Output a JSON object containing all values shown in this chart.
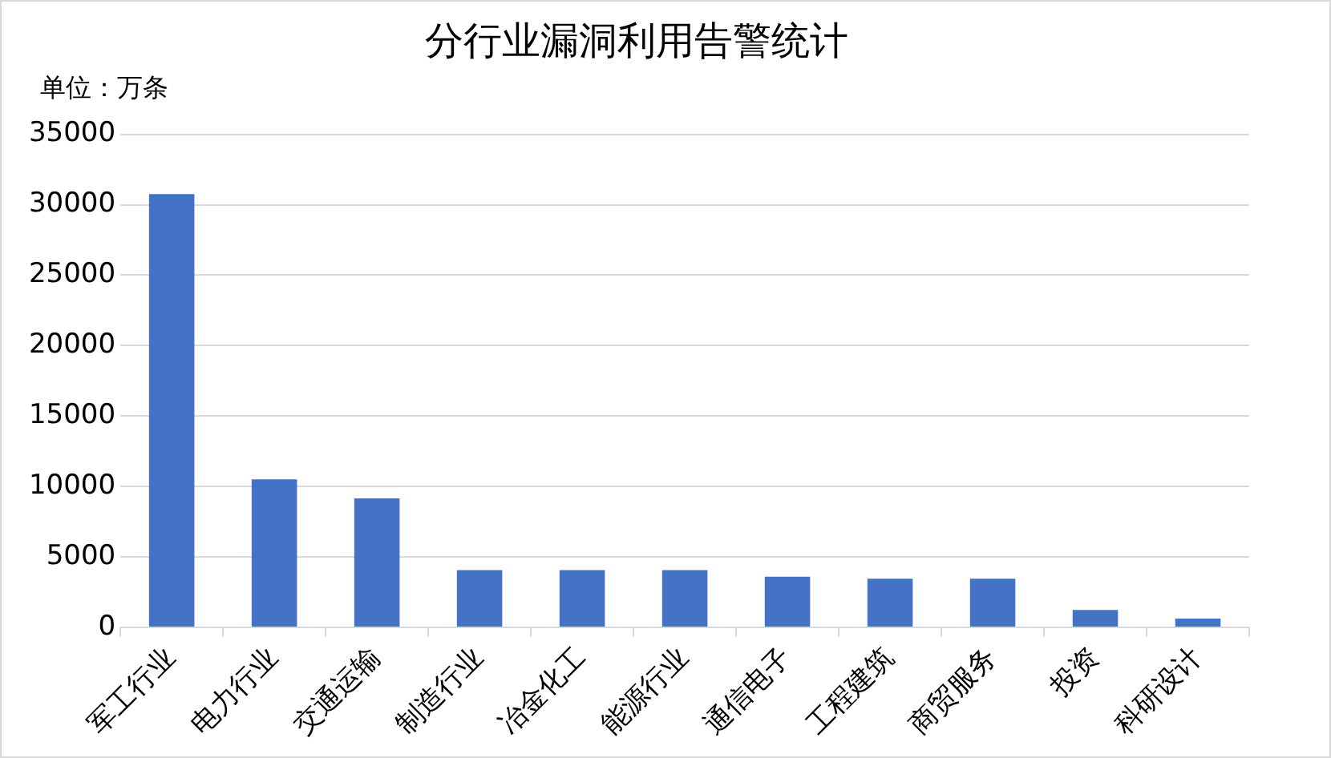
{
  "chart_data": {
    "type": "bar",
    "title": "分行业漏洞利用告警统计",
    "annotations": [
      "单位：万条"
    ],
    "categories": [
      "军工行业",
      "电力行业",
      "交通运输",
      "制造行业",
      "冶金化工",
      "能源行业",
      "通信电子",
      "工程建筑",
      "商贸服务",
      "投资",
      "科研设计"
    ],
    "values": [
      30750,
      10500,
      9150,
      4070,
      4070,
      4070,
      3600,
      3450,
      3450,
      1240,
      620
    ],
    "color": "#4472c4",
    "ylim": [
      0,
      35000
    ],
    "yticks": [
      0,
      5000,
      10000,
      15000,
      20000,
      25000,
      30000,
      35000
    ],
    "grid": "y",
    "legend": false
  }
}
